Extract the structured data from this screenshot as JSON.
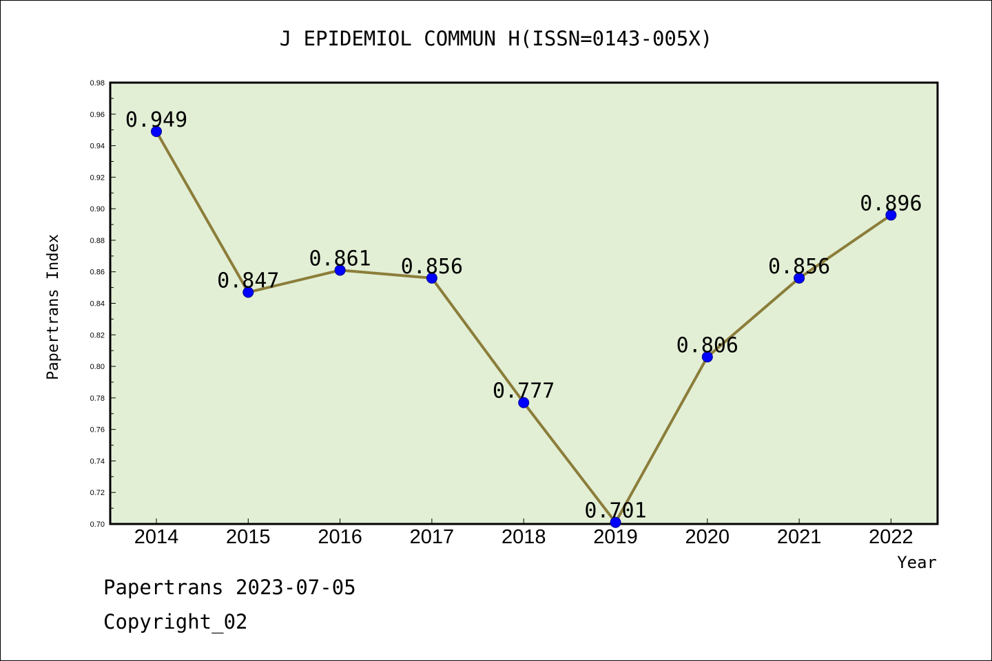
{
  "chart_data": {
    "type": "line",
    "title": "J EPIDEMIOL COMMUN H(ISSN=0143-005X)",
    "xlabel": "Year",
    "ylabel": "Papertrans Index",
    "categories": [
      "2014",
      "2015",
      "2016",
      "2017",
      "2018",
      "2019",
      "2020",
      "2021",
      "2022"
    ],
    "values": [
      0.949,
      0.847,
      0.861,
      0.856,
      0.777,
      0.701,
      0.806,
      0.856,
      0.896
    ],
    "value_labels": [
      "0.949",
      "0.847",
      "0.861",
      "0.856",
      "0.777",
      "0.701",
      "0.806",
      "0.856",
      "0.896"
    ],
    "ylim": [
      0.7,
      0.98
    ],
    "yticks": [
      "0.70",
      "0.72",
      "0.74",
      "0.76",
      "0.78",
      "0.80",
      "0.82",
      "0.84",
      "0.86",
      "0.88",
      "0.90",
      "0.92",
      "0.94",
      "0.96",
      "0.98"
    ],
    "grid": false,
    "colors": {
      "plot_background": "#e2efd5",
      "line": "#8b7d3a",
      "marker": "#0000ff"
    }
  },
  "footer": {
    "line1": "Papertrans 2023-07-05",
    "line2": "Copyright_02"
  }
}
